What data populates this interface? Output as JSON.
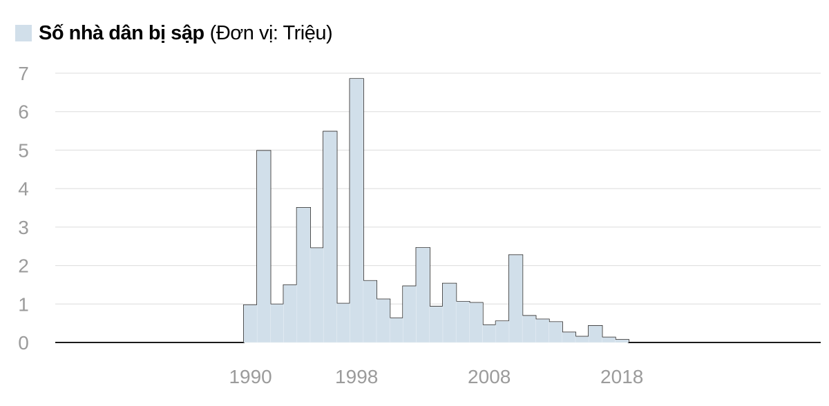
{
  "legend": {
    "label": "Số nhà dân bị sập",
    "unit": "(Đơn vị: Triệu)"
  },
  "colors": {
    "fill": "#d1dfea",
    "stroke": "#1a1a1a",
    "grid": "#dcdcdc",
    "tick": "#9b9b9b"
  },
  "chart_data": {
    "type": "area",
    "title": "Số nhà dân bị sập",
    "ylabel": "(Đơn vị: Triệu)",
    "xlabel": "",
    "ylim": [
      0,
      7
    ],
    "xlim": [
      1976,
      2033
    ],
    "yticks": [
      0,
      1,
      2,
      3,
      4,
      5,
      6,
      7
    ],
    "xticks": [
      1990,
      1998,
      2008,
      2018
    ],
    "grid": true,
    "step": true,
    "series": [
      {
        "name": "Số nhà dân bị sập",
        "x": [
          1990,
          1991,
          1992,
          1993,
          1994,
          1995,
          1996,
          1997,
          1998,
          1999,
          2000,
          2001,
          2002,
          2003,
          2004,
          2005,
          2006,
          2007,
          2008,
          2009,
          2010,
          2011,
          2012,
          2013,
          2014,
          2015,
          2016,
          2017,
          2018
        ],
        "values": [
          0.97,
          4.98,
          0.99,
          1.49,
          3.5,
          2.45,
          5.48,
          1.01,
          6.85,
          1.6,
          1.12,
          0.63,
          1.46,
          2.46,
          0.93,
          1.53,
          1.06,
          1.03,
          0.45,
          0.55,
          2.27,
          0.69,
          0.6,
          0.53,
          0.26,
          0.15,
          0.43,
          0.13,
          0.07
        ]
      }
    ]
  }
}
